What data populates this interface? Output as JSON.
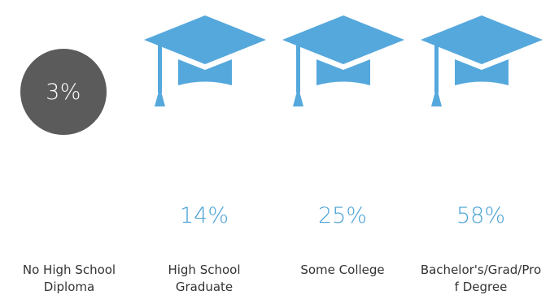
{
  "colors": {
    "cap": "#55a8dc",
    "percent": "#4aa2d6",
    "circle": "#5b5b5b",
    "circle_text": "#ffffff",
    "label": "#333333"
  },
  "stats": [
    {
      "icon": "gray-circle",
      "value": "3%",
      "label": "No High School\nDiploma"
    },
    {
      "icon": "graduation-cap-icon",
      "value": "14%",
      "label": "High School\nGraduate"
    },
    {
      "icon": "graduation-cap-icon",
      "value": "25%",
      "label": "Some College"
    },
    {
      "icon": "graduation-cap-icon",
      "value": "58%",
      "label": "Bachelor's/Grad/Pro\nf Degree"
    }
  ]
}
